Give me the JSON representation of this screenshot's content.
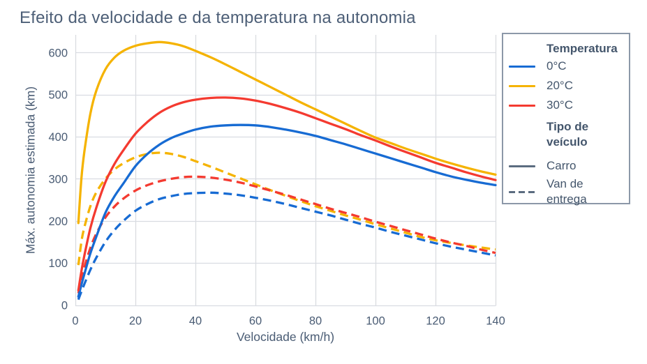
{
  "title": "Efeito da velocidade e da temperatura na autonomia",
  "colors": {
    "temp_0c": "#176bd3",
    "temp_20c": "#f5b301",
    "temp_30c": "#f43a30",
    "neutral_line": "#5b6c80",
    "text": "#4a5c74",
    "grid": "#d9dce1",
    "legend_border": "#8c98a8",
    "background": "#ffffff"
  },
  "legend": {
    "temperature": {
      "title": "Temperatura",
      "items": [
        {
          "label": "0°C",
          "color_key": "temp_0c",
          "dash": "solid"
        },
        {
          "label": "20°C",
          "color_key": "temp_20c",
          "dash": "solid"
        },
        {
          "label": "30°C",
          "color_key": "temp_30c",
          "dash": "solid"
        }
      ]
    },
    "vehicle": {
      "title": "Tipo de veículo",
      "items": [
        {
          "label": "Carro",
          "color_key": "neutral_line",
          "dash": "solid"
        },
        {
          "label": "Van de entrega",
          "color_key": "neutral_line",
          "dash": "dashed"
        }
      ]
    }
  },
  "chart_data": {
    "type": "line",
    "title": "Efeito da velocidade e da temperatura na autonomia",
    "xlabel": "Velocidade (km/h)",
    "ylabel": "Máx. autonomia estimada (km)",
    "xlim": [
      0,
      140
    ],
    "ylim": [
      0,
      642
    ],
    "xticks": [
      0,
      20,
      40,
      60,
      80,
      100,
      120,
      140
    ],
    "yticks": [
      0,
      100,
      200,
      300,
      400,
      500,
      600
    ],
    "grid": true,
    "legend_position": "right",
    "x": [
      1,
      2,
      3,
      5,
      7,
      10,
      13,
      16,
      20,
      24,
      28,
      32,
      36,
      40,
      45,
      50,
      55,
      60,
      65,
      70,
      75,
      80,
      85,
      90,
      95,
      100,
      105,
      110,
      115,
      120,
      125,
      130,
      135,
      140
    ],
    "series": [
      {
        "id": "van-0c",
        "name": "Van de entrega · 0°C",
        "vehicle": "Van de entrega",
        "temperature": "0°C",
        "color_key": "temp_0c",
        "line": "dashed",
        "peak": {
          "x": 45,
          "y": 267
        },
        "y": [
          13,
          32,
          50,
          84,
          113,
          150,
          178,
          200,
          224,
          240,
          252,
          259,
          264,
          266,
          267,
          265,
          261,
          255,
          248,
          240,
          231,
          222,
          213,
          203,
          193,
          184,
          174,
          165,
          156,
          147,
          139,
          132,
          125,
          118
        ]
      },
      {
        "id": "van-20c",
        "name": "Van de entrega · 20°C",
        "vehicle": "Van de entrega",
        "temperature": "20°C",
        "color_key": "temp_20c",
        "line": "dashed",
        "peak": {
          "x": 28,
          "y": 362
        },
        "y": [
          95,
          150,
          185,
          235,
          268,
          300,
          322,
          337,
          351,
          359,
          362,
          359,
          352,
          342,
          329,
          315,
          301,
          287,
          273,
          260,
          247,
          235,
          224,
          213,
          203,
          192,
          182,
          172,
          162,
          154,
          148,
          142,
          137,
          132
        ]
      },
      {
        "id": "van-30c",
        "name": "Van de entrega · 30°C",
        "vehicle": "Van de entrega",
        "temperature": "30°C",
        "color_key": "temp_30c",
        "line": "dashed",
        "peak": {
          "x": 40,
          "y": 305
        },
        "y": [
          28,
          62,
          90,
          136,
          170,
          208,
          234,
          253,
          272,
          285,
          294,
          300,
          304,
          305,
          303,
          298,
          291,
          282,
          272,
          262,
          251,
          240,
          229,
          219,
          209,
          198,
          188,
          178,
          168,
          158,
          149,
          141,
          132,
          124
        ]
      },
      {
        "id": "carro-0c",
        "name": "Carro · 0°C",
        "vehicle": "Carro",
        "temperature": "0°C",
        "color_key": "temp_0c",
        "line": "solid",
        "peak": {
          "x": 55,
          "y": 428
        },
        "y": [
          20,
          48,
          74,
          123,
          163,
          219,
          258,
          289,
          330,
          359,
          381,
          397,
          408,
          417,
          424,
          427,
          428,
          427,
          423,
          417,
          410,
          402,
          392,
          382,
          371,
          360,
          349,
          338,
          327,
          316,
          306,
          298,
          291,
          285
        ]
      },
      {
        "id": "carro-20c",
        "name": "Carro · 20°C",
        "vehicle": "Carro",
        "temperature": "20°C",
        "color_key": "temp_20c",
        "line": "solid",
        "peak": {
          "x": 28,
          "y": 625
        },
        "y": [
          195,
          300,
          365,
          455,
          510,
          560,
          588,
          604,
          616,
          622,
          625,
          622,
          615,
          604,
          589,
          572,
          554,
          536,
          518,
          500,
          482,
          465,
          448,
          431,
          414,
          398,
          385,
          372,
          360,
          348,
          337,
          327,
          318,
          310
        ]
      },
      {
        "id": "carro-30c",
        "name": "Carro · 30°C",
        "vehicle": "Carro",
        "temperature": "30°C",
        "color_key": "temp_30c",
        "line": "solid",
        "peak": {
          "x": 50,
          "y": 493
        },
        "y": [
          35,
          80,
          118,
          183,
          232,
          292,
          335,
          368,
          407,
          435,
          457,
          472,
          482,
          488,
          492,
          493,
          491,
          486,
          478,
          468,
          457,
          444,
          431,
          418,
          404,
          391,
          377,
          364,
          351,
          338,
          327,
          316,
          306,
          297
        ]
      }
    ]
  }
}
